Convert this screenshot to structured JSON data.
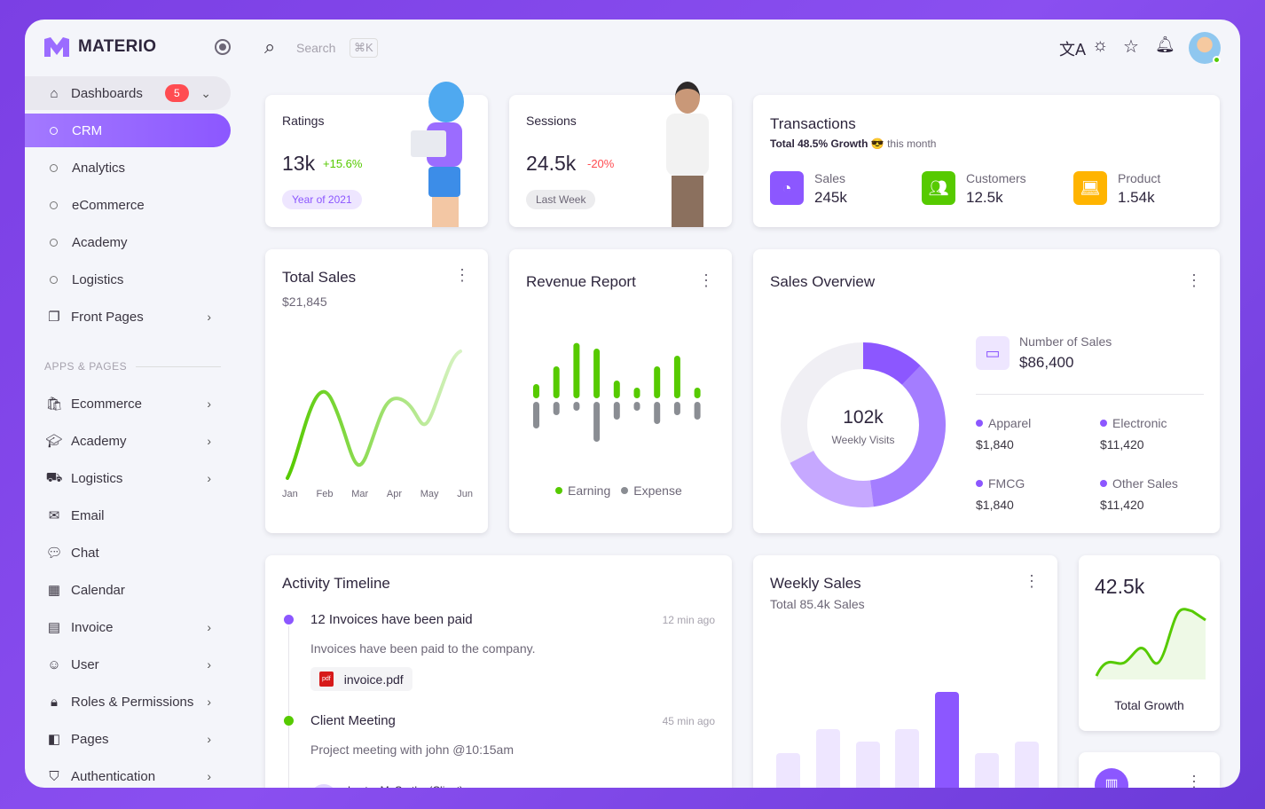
{
  "brand": {
    "name": "MATERIO",
    "accent": "#8c57ff"
  },
  "search": {
    "placeholder": "Search",
    "shortcut": "⌘K"
  },
  "topbar_icons": [
    "translate-icon",
    "sun-icon",
    "star-icon",
    "bell-icon",
    "avatar"
  ],
  "sidebar": {
    "dashboards": {
      "label": "Dashboards",
      "badge": "5"
    },
    "dash_items": [
      "CRM",
      "Analytics",
      "eCommerce",
      "Academy",
      "Logistics"
    ],
    "front_pages": "Front Pages",
    "section": "APPS & PAGES",
    "items": [
      {
        "label": "Ecommerce",
        "icon": "cart-icon",
        "chev": true
      },
      {
        "label": "Academy",
        "icon": "graduation-cap-icon",
        "chev": true
      },
      {
        "label": "Logistics",
        "icon": "truck-icon",
        "chev": true
      },
      {
        "label": "Email",
        "icon": "mail-icon",
        "chev": false
      },
      {
        "label": "Chat",
        "icon": "chat-icon",
        "chev": false
      },
      {
        "label": "Calendar",
        "icon": "calendar-icon",
        "chev": false
      },
      {
        "label": "Invoice",
        "icon": "invoice-icon",
        "chev": true
      },
      {
        "label": "User",
        "icon": "user-icon",
        "chev": true
      },
      {
        "label": "Roles & Permissions",
        "icon": "lock-icon",
        "chev": true
      },
      {
        "label": "Pages",
        "icon": "layout-icon",
        "chev": true
      },
      {
        "label": "Authentication",
        "icon": "shield-icon",
        "chev": true
      }
    ]
  },
  "ratings": {
    "title": "Ratings",
    "value": "13k",
    "change": "+15.6%",
    "chip": "Year of 2021"
  },
  "sessions": {
    "title": "Sessions",
    "value": "24.5k",
    "change": "-20%",
    "chip": "Last Week"
  },
  "transactions": {
    "title": "Transactions",
    "growth": "Total 48.5% Growth 😎",
    "period": "this month",
    "stats": [
      {
        "label": "Sales",
        "value": "245k",
        "color": "#8c57ff",
        "icon": "pie-chart-icon"
      },
      {
        "label": "Customers",
        "value": "12.5k",
        "color": "#56ca00",
        "icon": "users-icon"
      },
      {
        "label": "Product",
        "value": "1.54k",
        "color": "#ffb400",
        "icon": "laptop-icon"
      }
    ]
  },
  "total_sales": {
    "title": "Total Sales",
    "value": "$21,845",
    "months": [
      "Jan",
      "Feb",
      "Mar",
      "Apr",
      "May",
      "Jun"
    ]
  },
  "revenue": {
    "title": "Revenue Report",
    "earning_label": "Earning",
    "expense_label": "Expense",
    "earning": [
      20,
      45,
      78,
      70,
      25,
      15,
      45,
      60,
      15
    ],
    "expense": [
      30,
      15,
      10,
      45,
      20,
      10,
      25,
      15,
      20
    ]
  },
  "sales_overview": {
    "title": "Sales Overview",
    "center_value": "102k",
    "center_label": "Weekly Visits",
    "number_label": "Number of Sales",
    "number_value": "$86,400",
    "items": [
      {
        "label": "Apparel",
        "value": "$1,840"
      },
      {
        "label": "Electronic",
        "value": "$11,420"
      },
      {
        "label": "FMCG",
        "value": "$1,840"
      },
      {
        "label": "Other Sales",
        "value": "$11,420"
      }
    ]
  },
  "timeline": {
    "title": "Activity Timeline",
    "events": [
      {
        "title": "12 Invoices have been paid",
        "time": "12 min ago",
        "desc": "Invoices have been paid to the company.",
        "file": "invoice.pdf",
        "color": "#8c57ff"
      },
      {
        "title": "Client Meeting",
        "time": "45 min ago",
        "desc": "Project meeting with john @10:15am",
        "person": "Lester McCarthy (Client)",
        "color": "#56ca00"
      }
    ]
  },
  "weekly_sales": {
    "title": "Weekly Sales",
    "subtitle": "Total 85.4k Sales",
    "values": [
      57,
      84,
      70,
      84,
      126,
      57,
      70
    ]
  },
  "total_growth": {
    "value": "42.5k",
    "label": "Total Growth"
  }
}
